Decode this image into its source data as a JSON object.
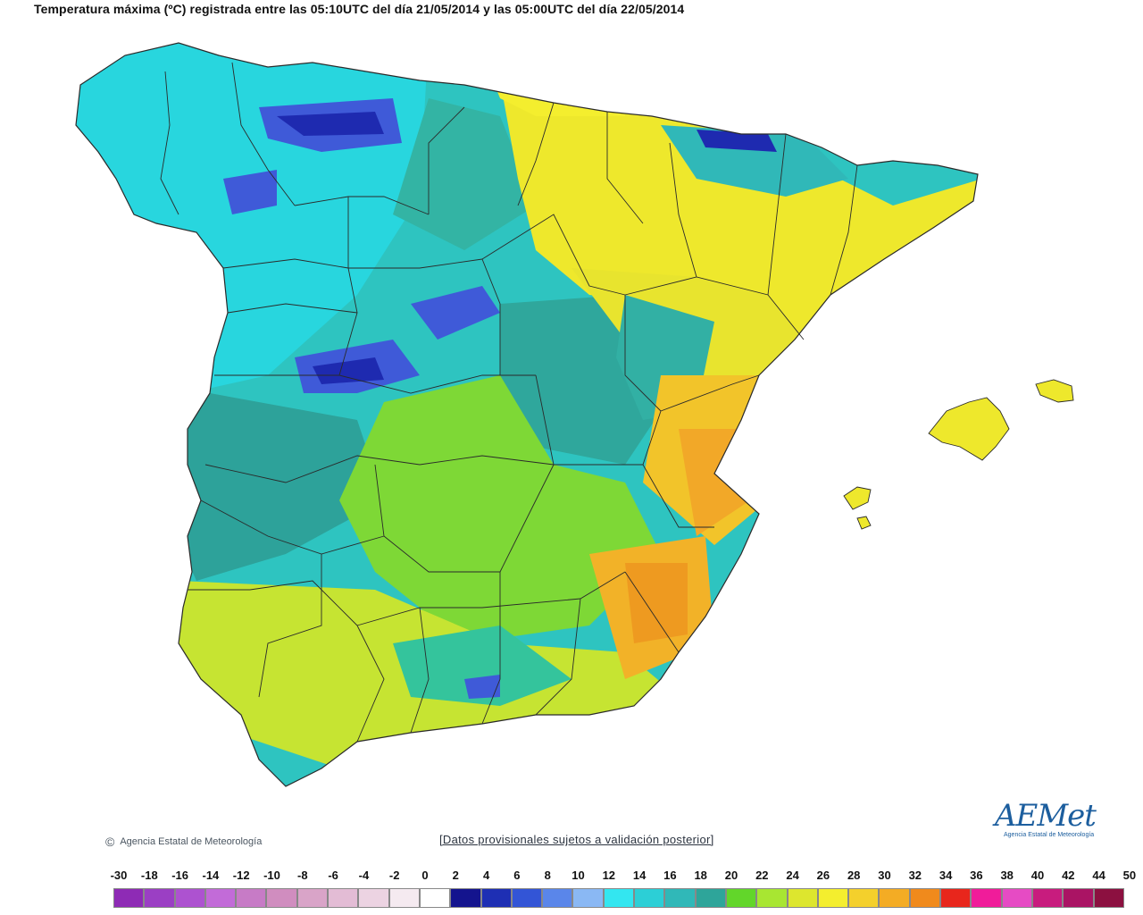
{
  "title": "Temperatura máxima (ºC) registrada entre las 05:10UTC del día 21/05/2014 y las 05:00UTC del día 22/05/2014",
  "agency_name": "Agencia Estatal de Meteorología",
  "disclaimer": "[Datos provisionales sujetos a validación posterior]",
  "logo": {
    "wordmark": "AEMet",
    "subtitle": "Agencia Estatal de Meteorología"
  },
  "legend": {
    "labels": [
      "-30",
      "-18",
      "-16",
      "-14",
      "-12",
      "-10",
      "-8",
      "-6",
      "-4",
      "-2",
      "0",
      "2",
      "4",
      "6",
      "8",
      "10",
      "12",
      "14",
      "16",
      "18",
      "20",
      "22",
      "24",
      "26",
      "28",
      "30",
      "32",
      "34",
      "36",
      "38",
      "40",
      "42",
      "44",
      "50"
    ],
    "colors": [
      "#8e2bb5",
      "#9b3fc4",
      "#ad52d0",
      "#c26bd8",
      "#c77bc6",
      "#d08dbf",
      "#d9a4c8",
      "#e3bcd5",
      "#ecd3e2",
      "#f5eaf0",
      "#ffffff",
      "#14148e",
      "#1e2fb4",
      "#3355d6",
      "#5a86ea",
      "#8ab8f4",
      "#33e6f0",
      "#2ccfd6",
      "#30b8b8",
      "#2ea59a",
      "#62d62a",
      "#a8e632",
      "#dde62e",
      "#f4ee2e",
      "#f4d02c",
      "#f4ac24",
      "#f08a1c",
      "#e8261c",
      "#f01c9a",
      "#e64bc4",
      "#c81c7e",
      "#aa1464",
      "#8c1040"
    ]
  },
  "map_colors": {
    "cold_cyan": "#28d4dc",
    "teal": "#2fb3aa",
    "dark_teal": "#2c9c92",
    "green": "#7ed836",
    "yellow_green": "#c6e432",
    "yellow": "#eee82c",
    "orange": "#f2b228",
    "deep_orange": "#ee9a20",
    "blue": "#3f5ad8",
    "dark_blue": "#1e2ab0"
  }
}
